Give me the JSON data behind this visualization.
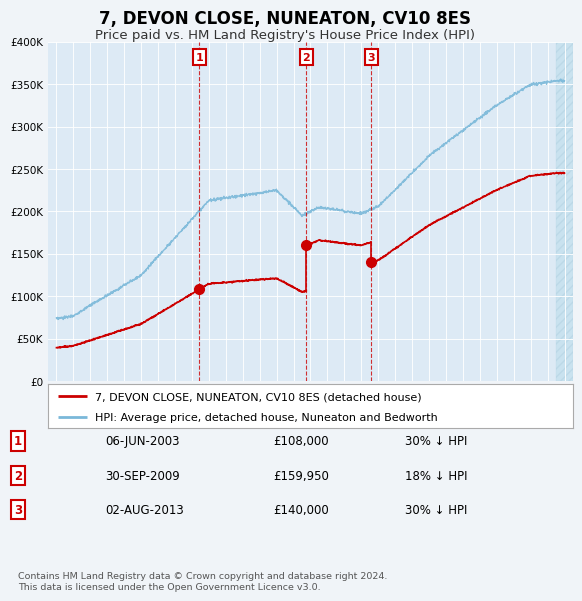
{
  "title": "7, DEVON CLOSE, NUNEATON, CV10 8ES",
  "subtitle": "Price paid vs. HM Land Registry's House Price Index (HPI)",
  "title_fontsize": 12,
  "subtitle_fontsize": 9.5,
  "hpi_color": "#7ab8d9",
  "price_color": "#cc0000",
  "background_color": "#f0f4f8",
  "plot_bg_color": "#ddeaf5",
  "ylim": [
    0,
    400000
  ],
  "yticks": [
    0,
    50000,
    100000,
    150000,
    200000,
    250000,
    300000,
    350000,
    400000
  ],
  "transactions": [
    {
      "num": 1,
      "date": "06-JUN-2003",
      "price": 108000,
      "hpi_change": "30% ↓ HPI",
      "year": 2003.43,
      "price_val": 108000
    },
    {
      "num": 2,
      "date": "30-SEP-2009",
      "price": 159950,
      "hpi_change": "18% ↓ HPI",
      "year": 2009.75,
      "price_val": 159950
    },
    {
      "num": 3,
      "date": "02-AUG-2013",
      "price": 140000,
      "hpi_change": "30% ↓ HPI",
      "year": 2013.58,
      "price_val": 140000
    }
  ],
  "legend_label_price": "7, DEVON CLOSE, NUNEATON, CV10 8ES (detached house)",
  "legend_label_hpi": "HPI: Average price, detached house, Nuneaton and Bedworth",
  "footnote": "Contains HM Land Registry data © Crown copyright and database right 2024.\nThis data is licensed under the Open Government Licence v3.0."
}
